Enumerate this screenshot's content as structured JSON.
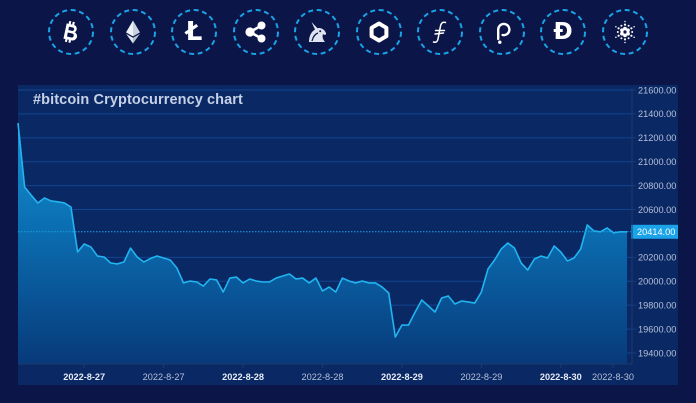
{
  "coins": [
    {
      "id": "bitcoin",
      "icon": "bitcoin-icon"
    },
    {
      "id": "ethereum",
      "icon": "ethereum-icon"
    },
    {
      "id": "litecoin",
      "icon": "litecoin-icon",
      "glyph": "Ł"
    },
    {
      "id": "xrp",
      "icon": "xrp-icon"
    },
    {
      "id": "uniswap",
      "icon": "uniswap-icon"
    },
    {
      "id": "chainlink",
      "icon": "chainlink-icon"
    },
    {
      "id": "filecoin",
      "icon": "filecoin-icon"
    },
    {
      "id": "polkadot",
      "icon": "polkadot-icon"
    },
    {
      "id": "dogecoin",
      "icon": "dogecoin-icon",
      "glyph": "Đ"
    },
    {
      "id": "cardano",
      "icon": "cardano-icon"
    }
  ],
  "colors": {
    "background": "#0b1547",
    "panel": "#0a2864",
    "ring": "#1aa3e8",
    "line": "#22b4f0",
    "grid": "#11458f",
    "axis": "#1d3a70",
    "price_tag": "#1aa3e8",
    "tick_label": "#b4c0d8",
    "major_label": "#e6ebf5"
  },
  "chart_data": {
    "type": "area",
    "title": "#bitcoin Cryptocurrency chart",
    "xlabel": "",
    "ylabel": "",
    "ylim": [
      19400,
      21600
    ],
    "grid": true,
    "legend": "none",
    "y_axis_position": "right",
    "y_ticks": [
      "21600.00",
      "21400.00",
      "21200.00",
      "21000.00",
      "20800.00",
      "20600.00",
      "20200.00",
      "20000.00",
      "19800.00",
      "19600.00",
      "19400.00"
    ],
    "x_ticks": [
      {
        "label": "2022-8-27",
        "major": true,
        "at": 10
      },
      {
        "label": "2022-8-27",
        "major": false,
        "at": 22
      },
      {
        "label": "2022-8-28",
        "major": true,
        "at": 34
      },
      {
        "label": "2022-8-28",
        "major": false,
        "at": 46
      },
      {
        "label": "2022-8-29",
        "major": true,
        "at": 58
      },
      {
        "label": "2022-8-29",
        "major": false,
        "at": 70
      },
      {
        "label": "2022-8-30",
        "major": true,
        "at": 82
      },
      {
        "label": "2022-8-30",
        "major": false,
        "at": 90
      }
    ],
    "current_value": 20414,
    "current_label": "20414.00",
    "series": [
      {
        "name": "bitcoin",
        "values": [
          21324,
          20789,
          20720,
          20655,
          20697,
          20672,
          20665,
          20655,
          20621,
          20245,
          20312,
          20287,
          20211,
          20203,
          20153,
          20145,
          20161,
          20278,
          20203,
          20161,
          20190,
          20211,
          20195,
          20178,
          20111,
          19986,
          20002,
          19994,
          19960,
          20019,
          20011,
          19910,
          20027,
          20035,
          19986,
          20019,
          20002,
          19994,
          19994,
          20027,
          20044,
          20061,
          20019,
          20027,
          19986,
          20027,
          19919,
          19952,
          19910,
          20027,
          20002,
          19986,
          20002,
          19986,
          19986,
          19952,
          19902,
          19534,
          19634,
          19634,
          19743,
          19843,
          19793,
          19743,
          19860,
          19877,
          19810,
          19835,
          19827,
          19818,
          19910,
          20103,
          20178,
          20270,
          20320,
          20278,
          20153,
          20094,
          20186,
          20211,
          20195,
          20295,
          20245,
          20170,
          20195,
          20270,
          20471,
          20421,
          20414,
          20446,
          20405,
          20414,
          20414
        ]
      }
    ]
  }
}
